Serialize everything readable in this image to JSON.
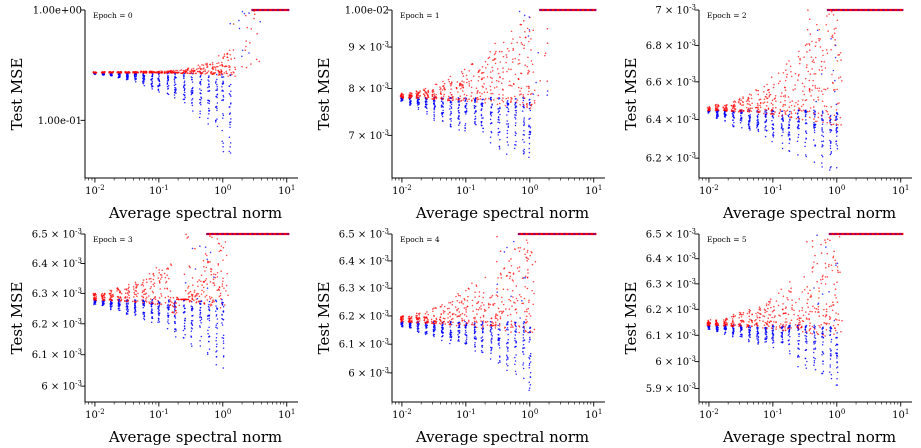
{
  "colors": {
    "series_a": "#0000ff",
    "series_b": "#ff0000",
    "axis": "#000000"
  },
  "chart_data": [
    {
      "type": "scatter",
      "epoch_label": "Epoch = 0",
      "xlabel": "Average spectral norm",
      "ylabel": "Test MSE",
      "xscale": "log",
      "yscale": "log",
      "xlim": [
        0.007,
        15
      ],
      "ylim": [
        0.03,
        1.0
      ],
      "xticks": [
        {
          "v": 0.01,
          "b": "10",
          "e": "-2"
        },
        {
          "v": 0.1,
          "b": "10",
          "e": "-1"
        },
        {
          "v": 1,
          "b": "10",
          "e": "0"
        },
        {
          "v": 10,
          "b": "10",
          "e": "1"
        }
      ],
      "yticks": [
        {
          "v": 1.0,
          "text": "1.00e+00"
        },
        {
          "v": 0.1,
          "text": "1.00e-01"
        }
      ],
      "x_cols": [
        0.01,
        0.0135,
        0.018,
        0.024,
        0.032,
        0.043,
        0.058,
        0.078,
        0.1,
        0.14,
        0.18,
        0.25,
        0.33,
        0.45,
        0.6,
        0.8,
        1.0,
        1.3
      ],
      "base": 0.27,
      "cap": 1.0,
      "blue_low": [
        0.26,
        0.255,
        0.25,
        0.24,
        0.23,
        0.22,
        0.205,
        0.19,
        0.175,
        0.16,
        0.145,
        0.13,
        0.115,
        0.1,
        0.088,
        0.075,
        0.05,
        0.04
      ],
      "red_high": [
        0.275,
        0.275,
        0.276,
        0.276,
        0.277,
        0.277,
        0.278,
        0.279,
        0.28,
        0.282,
        0.285,
        0.29,
        0.3,
        0.32,
        0.33,
        0.35,
        0.4,
        0.45
      ],
      "cap_x": [
        2.8,
        11.0
      ]
    },
    {
      "type": "scatter",
      "epoch_label": "Epoch = 1",
      "xlabel": "Average spectral norm",
      "ylabel": "Test MSE",
      "xscale": "log",
      "yscale": "log",
      "xlim": [
        0.007,
        15
      ],
      "ylim": [
        0.0062,
        0.01
      ],
      "xticks": [
        {
          "v": 0.01,
          "b": "10",
          "e": "-2"
        },
        {
          "v": 0.1,
          "b": "10",
          "e": "-1"
        },
        {
          "v": 1,
          "b": "10",
          "e": "0"
        },
        {
          "v": 10,
          "b": "10",
          "e": "1"
        }
      ],
      "yticks": [
        {
          "v": 0.01,
          "text": "1.00e-02"
        },
        {
          "v": 0.009,
          "b": "9",
          "e": "-3"
        },
        {
          "v": 0.008,
          "b": "8",
          "e": "-3"
        },
        {
          "v": 0.007,
          "b": "7",
          "e": "-3"
        }
      ],
      "x_cols": [
        0.01,
        0.0135,
        0.018,
        0.024,
        0.032,
        0.043,
        0.058,
        0.078,
        0.1,
        0.14,
        0.18,
        0.25,
        0.33,
        0.45,
        0.6,
        0.8,
        1.0
      ],
      "base": 0.0078,
      "cap": 0.01,
      "blue_low": [
        0.0077,
        0.0076,
        0.0075,
        0.0074,
        0.0073,
        0.0072,
        0.00715,
        0.0071,
        0.007,
        0.0069,
        0.00685,
        0.0068,
        0.0067,
        0.0066,
        0.00655,
        0.0065,
        0.0064
      ],
      "red_high": [
        0.0079,
        0.0079,
        0.00795,
        0.008,
        0.0081,
        0.0082,
        0.0083,
        0.0084,
        0.0085,
        0.0086,
        0.0087,
        0.0089,
        0.0091,
        0.0093,
        0.0095,
        0.0096,
        0.0098
      ],
      "cap_x": [
        1.4,
        11.0
      ]
    },
    {
      "type": "scatter",
      "epoch_label": "Epoch = 2",
      "xlabel": "Average spectral norm",
      "ylabel": "Test MSE",
      "xscale": "log",
      "yscale": "log",
      "xlim": [
        0.007,
        15
      ],
      "ylim": [
        0.0061,
        0.007
      ],
      "xticks": [
        {
          "v": 0.01,
          "b": "10",
          "e": "-2"
        },
        {
          "v": 0.1,
          "b": "10",
          "e": "-1"
        },
        {
          "v": 1,
          "b": "10",
          "e": "0"
        },
        {
          "v": 10,
          "b": "10",
          "e": "1"
        }
      ],
      "yticks": [
        {
          "v": 0.007,
          "b": "7",
          "e": "-3"
        },
        {
          "v": 0.0068,
          "b": "6.8",
          "e": "-3"
        },
        {
          "v": 0.0066,
          "b": "6.6",
          "e": "-3"
        },
        {
          "v": 0.0064,
          "b": "6.4",
          "e": "-3"
        },
        {
          "v": 0.0062,
          "b": "6.2",
          "e": "-3"
        }
      ],
      "x_cols": [
        0.01,
        0.0135,
        0.018,
        0.024,
        0.032,
        0.043,
        0.058,
        0.078,
        0.1,
        0.14,
        0.18,
        0.25,
        0.33,
        0.45,
        0.6,
        0.8,
        1.0
      ],
      "base": 0.00645,
      "cap": 0.007,
      "blue_low": [
        0.00643,
        0.0064,
        0.00638,
        0.00636,
        0.00634,
        0.00632,
        0.0063,
        0.00628,
        0.00626,
        0.00624,
        0.00622,
        0.0062,
        0.00618,
        0.00616,
        0.00614,
        0.00613,
        0.00612
      ],
      "red_high": [
        0.00647,
        0.00648,
        0.00649,
        0.0065,
        0.00652,
        0.00654,
        0.00657,
        0.0066,
        0.00663,
        0.00667,
        0.00672,
        0.00677,
        0.00683,
        0.0069,
        0.00695,
        0.00698,
        0.007
      ],
      "cap_x": [
        0.7,
        11.0
      ]
    },
    {
      "type": "scatter",
      "epoch_label": "Epoch = 3",
      "xlabel": "Average spectral norm",
      "ylabel": "Test MSE",
      "xscale": "log",
      "yscale": "log",
      "xlim": [
        0.007,
        15
      ],
      "ylim": [
        0.00595,
        0.0065
      ],
      "xticks": [
        {
          "v": 0.01,
          "b": "10",
          "e": "-2"
        },
        {
          "v": 0.1,
          "b": "10",
          "e": "-1"
        },
        {
          "v": 1,
          "b": "10",
          "e": "0"
        },
        {
          "v": 10,
          "b": "10",
          "e": "1"
        }
      ],
      "yticks": [
        {
          "v": 0.0065,
          "b": "6.5",
          "e": "-3"
        },
        {
          "v": 0.0064,
          "b": "6.4",
          "e": "-3"
        },
        {
          "v": 0.0063,
          "b": "6.3",
          "e": "-3"
        },
        {
          "v": 0.0062,
          "b": "6.2",
          "e": "-3"
        },
        {
          "v": 0.0061,
          "b": "6.1",
          "e": "-3"
        },
        {
          "v": 0.006,
          "b": "6",
          "e": "-3"
        }
      ],
      "x_cols": [
        0.01,
        0.0135,
        0.018,
        0.024,
        0.032,
        0.043,
        0.058,
        0.078,
        0.1,
        0.14,
        0.18,
        0.25,
        0.33,
        0.45,
        0.6,
        0.8,
        1.0
      ],
      "base": 0.00628,
      "cap": 0.0065,
      "blue_low": [
        0.00626,
        0.00625,
        0.00624,
        0.00623,
        0.00622,
        0.00621,
        0.0062,
        0.00619,
        0.00618,
        0.00616,
        0.00614,
        0.00612,
        0.0061,
        0.00608,
        0.00606,
        0.00604,
        0.00602
      ],
      "red_high": [
        0.0063,
        0.0063,
        0.00631,
        0.00632,
        0.00633,
        0.00634,
        0.00635,
        0.00637,
        0.00639,
        0.00641,
        0.00623,
        0.00628,
        0.00633,
        0.00638,
        0.00643,
        0.00647,
        0.0065
      ],
      "cap_x": [
        0.55,
        11.0
      ]
    },
    {
      "type": "scatter",
      "epoch_label": "Epoch = 4",
      "xlabel": "Average spectral norm",
      "ylabel": "Test MSE",
      "xscale": "log",
      "yscale": "log",
      "xlim": [
        0.007,
        15
      ],
      "ylim": [
        0.0059,
        0.0065
      ],
      "xticks": [
        {
          "v": 0.01,
          "b": "10",
          "e": "-2"
        },
        {
          "v": 0.1,
          "b": "10",
          "e": "-1"
        },
        {
          "v": 1,
          "b": "10",
          "e": "0"
        },
        {
          "v": 10,
          "b": "10",
          "e": "1"
        }
      ],
      "yticks": [
        {
          "v": 0.0065,
          "b": "6.5",
          "e": "-3"
        },
        {
          "v": 0.0064,
          "b": "6.4",
          "e": "-3"
        },
        {
          "v": 0.0063,
          "b": "6.3",
          "e": "-3"
        },
        {
          "v": 0.0062,
          "b": "6.2",
          "e": "-3"
        },
        {
          "v": 0.0061,
          "b": "6.1",
          "e": "-3"
        },
        {
          "v": 0.006,
          "b": "6",
          "e": "-3"
        }
      ],
      "x_cols": [
        0.01,
        0.0135,
        0.018,
        0.024,
        0.032,
        0.043,
        0.058,
        0.078,
        0.1,
        0.14,
        0.18,
        0.25,
        0.33,
        0.45,
        0.6,
        0.8,
        1.0
      ],
      "base": 0.00618,
      "cap": 0.0065,
      "blue_low": [
        0.00616,
        0.00615,
        0.00614,
        0.00613,
        0.00612,
        0.00611,
        0.0061,
        0.00609,
        0.00608,
        0.00606,
        0.00604,
        0.00602,
        0.006,
        0.00598,
        0.00596,
        0.00594,
        0.00593
      ],
      "red_high": [
        0.0062,
        0.0062,
        0.00621,
        0.00622,
        0.00623,
        0.00624,
        0.00626,
        0.00628,
        0.0063,
        0.00632,
        0.00635,
        0.00628,
        0.00634,
        0.0064,
        0.00645,
        0.00648,
        0.0065
      ],
      "cap_x": [
        0.65,
        11.0
      ]
    },
    {
      "type": "scatter",
      "epoch_label": "Epoch = 5",
      "xlabel": "Average spectral norm",
      "ylabel": "Test MSE",
      "xscale": "log",
      "yscale": "log",
      "xlim": [
        0.007,
        15
      ],
      "ylim": [
        0.00585,
        0.0065
      ],
      "xticks": [
        {
          "v": 0.01,
          "b": "10",
          "e": "-2"
        },
        {
          "v": 0.1,
          "b": "10",
          "e": "-1"
        },
        {
          "v": 1,
          "b": "10",
          "e": "0"
        },
        {
          "v": 10,
          "b": "10",
          "e": "1"
        }
      ],
      "yticks": [
        {
          "v": 0.0065,
          "b": "6.5",
          "e": "-3"
        },
        {
          "v": 0.0064,
          "b": "6.4",
          "e": "-3"
        },
        {
          "v": 0.0063,
          "b": "6.3",
          "e": "-3"
        },
        {
          "v": 0.0062,
          "b": "6.2",
          "e": "-3"
        },
        {
          "v": 0.0061,
          "b": "6.1",
          "e": "-3"
        },
        {
          "v": 0.006,
          "b": "6",
          "e": "-3"
        },
        {
          "v": 0.0059,
          "b": "5.9",
          "e": "-3"
        }
      ],
      "x_cols": [
        0.01,
        0.0135,
        0.018,
        0.024,
        0.032,
        0.043,
        0.058,
        0.078,
        0.1,
        0.14,
        0.18,
        0.25,
        0.33,
        0.45,
        0.6,
        0.8,
        1.0
      ],
      "base": 0.00614,
      "cap": 0.0065,
      "blue_low": [
        0.00612,
        0.00611,
        0.0061,
        0.00609,
        0.00608,
        0.00607,
        0.00606,
        0.00605,
        0.00604,
        0.00602,
        0.006,
        0.00598,
        0.00596,
        0.00594,
        0.00592,
        0.0059,
        0.00589
      ],
      "red_high": [
        0.00616,
        0.00616,
        0.00617,
        0.00618,
        0.00619,
        0.0062,
        0.00621,
        0.00623,
        0.00625,
        0.00628,
        0.00631,
        0.00626,
        0.00633,
        0.00639,
        0.00644,
        0.00648,
        0.0065
      ],
      "cap_x": [
        0.75,
        11.0
      ]
    }
  ]
}
